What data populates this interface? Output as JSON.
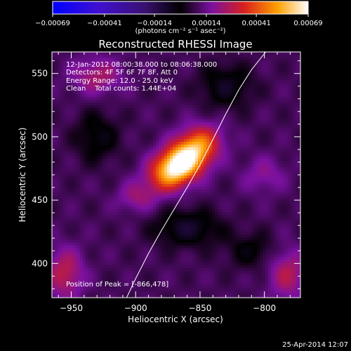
{
  "chart_data": {
    "type": "heatmap",
    "title": "Reconstructed RHESSI Image",
    "xlabel": "Heliocentric X (arcsec)",
    "ylabel": "Heliocentric Y (arcsec)",
    "xlim": [
      -965,
      -772
    ],
    "ylim": [
      373,
      567
    ],
    "x_ticks": [
      -950,
      -900,
      -850,
      -800
    ],
    "y_ticks": [
      400,
      450,
      500,
      550
    ],
    "x_minor_step": 10,
    "y_minor_step": 10,
    "colorbar": {
      "range": [
        -0.00069,
        0.00069
      ],
      "tick_values": [
        -0.00069,
        -0.00041,
        -0.00014,
        0.00014,
        0.00041,
        0.00069
      ],
      "tick_labels": [
        "-0.00069",
        "-0.00041",
        "-0.00014",
        "0.00014",
        "0.00041",
        "0.00069"
      ],
      "unit_label": "(photons cm⁻² s⁻¹ asec⁻²)"
    },
    "annotations": [
      "12-Jan-2012 08:00:38.000 to 08:06:38.000",
      "Detectors: 4F 5F 6F 7F 8F, Att 0",
      "Energy Range: 12.0 - 25.0 keV",
      "Clean    Total counts: 1.44E+04"
    ],
    "peak_label": "Position of Peak = [-866,478]",
    "peak": [
      -866,
      478
    ],
    "limb_curve": [
      [
        -907,
        373
      ],
      [
        -900,
        388
      ],
      [
        -890,
        408
      ],
      [
        -880,
        426
      ],
      [
        -870,
        443
      ],
      [
        -860,
        460
      ],
      [
        -850,
        478
      ],
      [
        -840,
        498
      ],
      [
        -830,
        518
      ],
      [
        -820,
        537
      ],
      [
        -810,
        553
      ],
      [
        -799,
        567
      ]
    ],
    "sources": [
      {
        "x": -866,
        "y": 478,
        "amp": 0.00069,
        "sx": 16,
        "sy": 10,
        "angle_deg": 35
      },
      {
        "x": -850,
        "y": 496,
        "amp": 0.00022,
        "sx": 12,
        "sy": 10,
        "angle_deg": 20
      },
      {
        "x": -900,
        "y": 452,
        "amp": 0.00012,
        "sx": 10,
        "sy": 8,
        "angle_deg": 0
      },
      {
        "x": -930,
        "y": 548,
        "amp": 0.00016,
        "sx": 14,
        "sy": 10,
        "angle_deg": 0
      },
      {
        "x": -955,
        "y": 392,
        "amp": 0.0002,
        "sx": 10,
        "sy": 14,
        "angle_deg": 0
      },
      {
        "x": -782,
        "y": 392,
        "amp": 0.00018,
        "sx": 10,
        "sy": 14,
        "angle_deg": 0
      },
      {
        "x": -800,
        "y": 470,
        "amp": 0.0001,
        "sx": 12,
        "sy": 10,
        "angle_deg": 0
      },
      {
        "x": -860,
        "y": 428,
        "amp": -0.00016,
        "sx": 18,
        "sy": 10,
        "angle_deg": 0
      },
      {
        "x": -830,
        "y": 540,
        "amp": -0.00014,
        "sx": 14,
        "sy": 12,
        "angle_deg": 0
      },
      {
        "x": -930,
        "y": 500,
        "amp": -0.00012,
        "sx": 12,
        "sy": 14,
        "angle_deg": 0
      },
      {
        "x": -810,
        "y": 410,
        "amp": -0.0001,
        "sx": 14,
        "sy": 10,
        "angle_deg": 0
      }
    ]
  },
  "footer": {
    "date": "25-Apr-2014 12:07"
  }
}
